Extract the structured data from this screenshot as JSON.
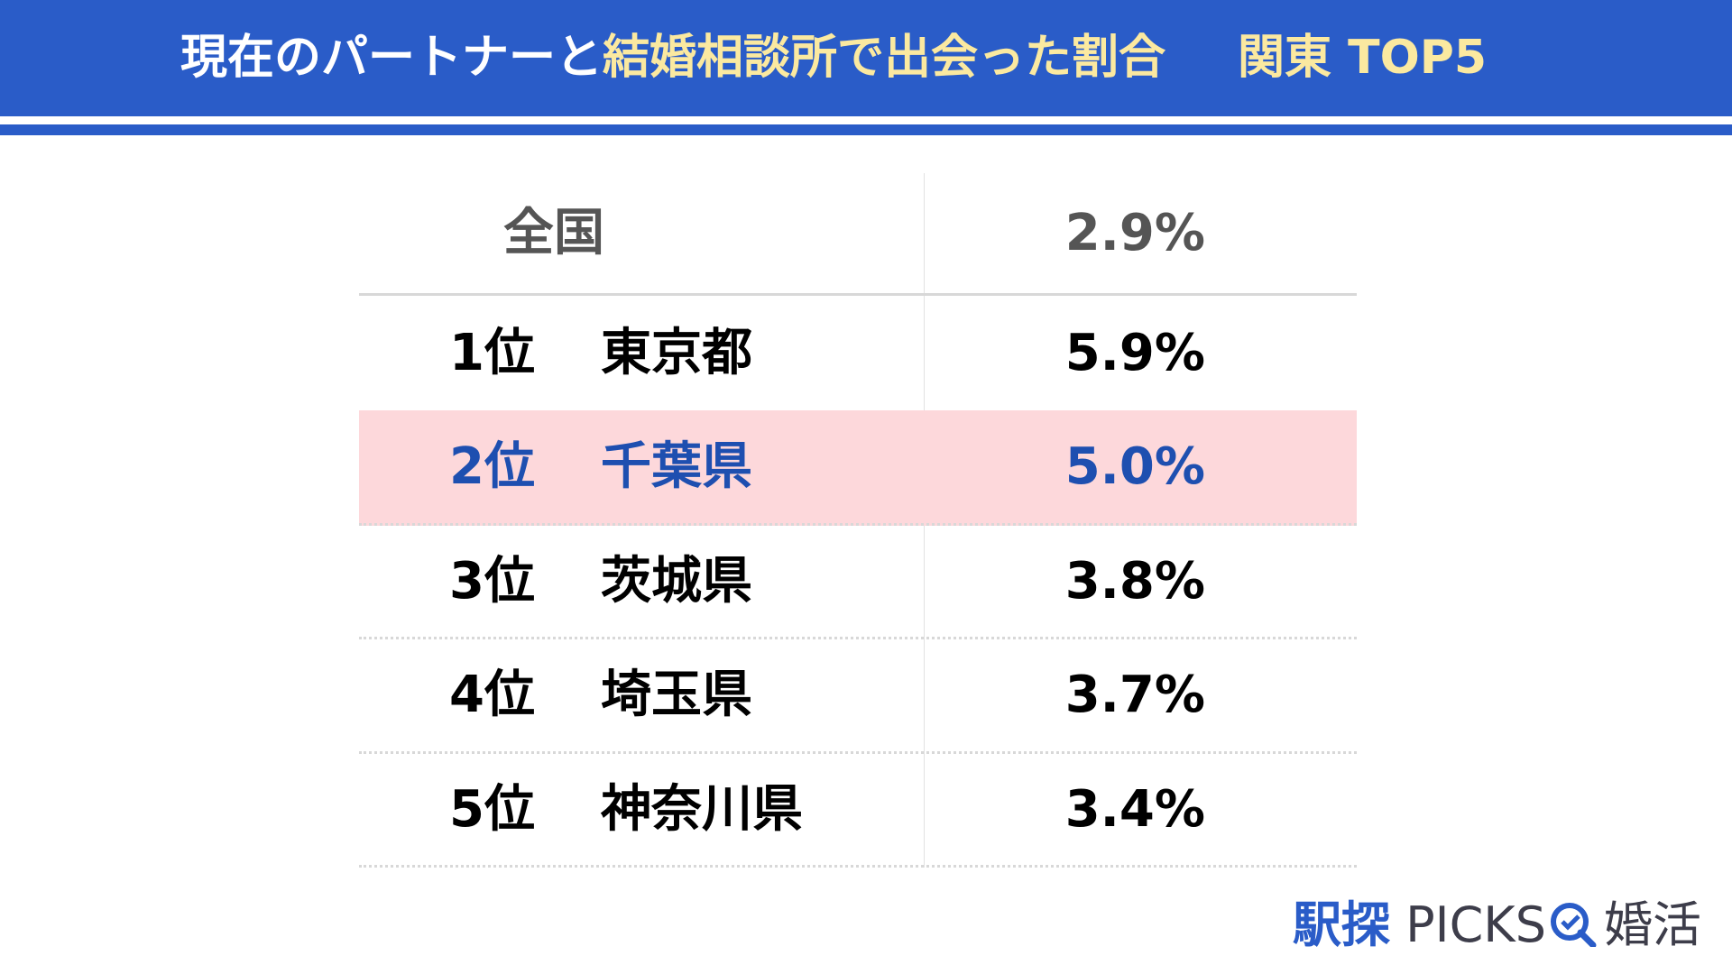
{
  "header": {
    "title_parts": [
      "現在のパートナーと",
      "結婚相談所で出会った割合",
      "関東 TOP5"
    ]
  },
  "table": {
    "national": {
      "label": "全国",
      "value": "2.9%"
    },
    "rows": [
      [
        "1位",
        "東京都",
        "5.9%"
      ],
      [
        "2位",
        "千葉県",
        "5.0%"
      ],
      [
        "3位",
        "茨城県",
        "3.8%"
      ],
      [
        "4位",
        "埼玉県",
        "3.7%"
      ],
      [
        "5位",
        "神奈川県",
        "3.4%"
      ]
    ],
    "highlight_row": 1
  },
  "logo": {
    "brand": "駅探",
    "name": "PICKS",
    "suffix": "婚活"
  }
}
